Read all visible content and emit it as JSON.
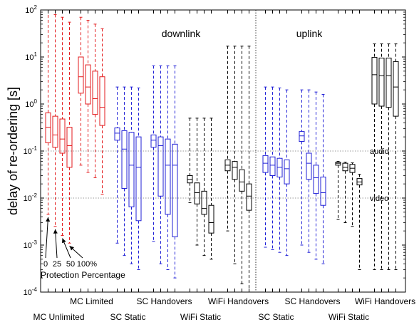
{
  "chart_data": {
    "type": "box",
    "ylabel": "delay of re-ordering [s]",
    "yscale": "log",
    "ylim": [
      0.0001,
      100
    ],
    "yticks": [
      {
        "value": 0.0001,
        "base": "10",
        "exp": "-4"
      },
      {
        "value": 0.001,
        "base": "10",
        "exp": "-3"
      },
      {
        "value": 0.01,
        "base": "10",
        "exp": "-2"
      },
      {
        "value": 0.1,
        "base": "10",
        "exp": "-1"
      },
      {
        "value": 1,
        "base": "10",
        "exp": "0"
      },
      {
        "value": 10,
        "base": "10",
        "exp": "1"
      },
      {
        "value": 100,
        "base": "10",
        "exp": "2"
      }
    ],
    "sections": [
      {
        "id": "downlink",
        "label": "downlink"
      },
      {
        "id": "uplink",
        "label": "uplink"
      }
    ],
    "reference_lines": [
      {
        "value": 0.1,
        "label": "audio"
      },
      {
        "value": 0.01,
        "label": "video"
      }
    ],
    "group_labels": [
      {
        "label": "MC Unlimited",
        "row": 2
      },
      {
        "label": "MC Limited",
        "row": 1
      },
      {
        "label": "SC Static",
        "row": 2
      },
      {
        "label": "SC Handovers",
        "row": 1
      },
      {
        "label": "WiFi Static",
        "row": 2
      },
      {
        "label": "WiFi Handovers",
        "row": 1
      },
      {
        "label": "SC Static",
        "row": 2
      },
      {
        "label": "SC Handovers",
        "row": 1
      },
      {
        "label": "WiFi Static",
        "row": 2
      },
      {
        "label": "WiFi Handovers",
        "row": 1
      }
    ],
    "protection_annotation": {
      "labels": [
        "0",
        "25",
        "50",
        "100%"
      ],
      "caption": "Protection Percentage"
    },
    "colors": {
      "mc": "#e31a1c",
      "sc": "#1f1fd6",
      "wifi": "#000000",
      "ref": "#777777"
    },
    "boxes": [
      {
        "group": 0,
        "i": 0,
        "color": "mc",
        "min": 0.0045,
        "q1": 0.15,
        "med": 0.32,
        "q3": 0.65,
        "max": 100
      },
      {
        "group": 0,
        "i": 1,
        "color": "mc",
        "min": 0.0025,
        "q1": 0.12,
        "med": 0.22,
        "q3": 0.55,
        "max": 80
      },
      {
        "group": 0,
        "i": 2,
        "color": "mc",
        "min": 0.0016,
        "q1": 0.09,
        "med": 0.18,
        "q3": 0.48,
        "max": 70
      },
      {
        "group": 0,
        "i": 3,
        "color": "mc",
        "min": 0.0011,
        "q1": 0.045,
        "med": 0.13,
        "q3": 0.32,
        "max": 55
      },
      {
        "group": 1,
        "i": 0,
        "color": "mc",
        "min": 0.05,
        "q1": 1.7,
        "med": 3.8,
        "q3": 10,
        "max": 70
      },
      {
        "group": 1,
        "i": 1,
        "color": "mc",
        "min": 0.035,
        "q1": 1.0,
        "med": 2.3,
        "q3": 6.8,
        "max": 60
      },
      {
        "group": 1,
        "i": 2,
        "color": "mc",
        "min": 0.027,
        "q1": 0.6,
        "med": 1.3,
        "q3": 5.0,
        "max": 50
      },
      {
        "group": 1,
        "i": 3,
        "color": "mc",
        "min": 0.012,
        "q1": 0.35,
        "med": 0.85,
        "q3": 3.8,
        "max": 40
      },
      {
        "group": 2,
        "i": 0,
        "color": "sc",
        "min": 0.0011,
        "q1": 0.17,
        "med": 0.24,
        "q3": 0.31,
        "max": 2.3
      },
      {
        "group": 2,
        "i": 1,
        "color": "sc",
        "min": 0.0006,
        "q1": 0.016,
        "med": 0.11,
        "q3": 0.27,
        "max": 2.3
      },
      {
        "group": 2,
        "i": 2,
        "color": "sc",
        "min": 0.0004,
        "q1": 0.0065,
        "med": 0.05,
        "q3": 0.25,
        "max": 2.3
      },
      {
        "group": 2,
        "i": 3,
        "color": "sc",
        "min": 0.0003,
        "q1": 0.0033,
        "med": 0.045,
        "q3": 0.2,
        "max": 2.2
      },
      {
        "group": 3,
        "i": 0,
        "color": "sc",
        "min": 0.0012,
        "q1": 0.12,
        "med": 0.17,
        "q3": 0.22,
        "max": 6.5
      },
      {
        "group": 3,
        "i": 1,
        "color": "sc",
        "min": 0.0004,
        "q1": 0.011,
        "med": 0.13,
        "q3": 0.2,
        "max": 6.5
      },
      {
        "group": 3,
        "i": 2,
        "color": "sc",
        "min": 0.0003,
        "q1": 0.0045,
        "med": 0.05,
        "q3": 0.18,
        "max": 6.5
      },
      {
        "group": 3,
        "i": 3,
        "color": "sc",
        "min": 0.0002,
        "q1": 0.0015,
        "med": 0.05,
        "q3": 0.14,
        "max": 6.5
      },
      {
        "group": 4,
        "i": 0,
        "color": "wifi",
        "min": 0.008,
        "q1": 0.021,
        "med": 0.025,
        "q3": 0.03,
        "max": 0.5
      },
      {
        "group": 4,
        "i": 1,
        "color": "wifi",
        "min": 0.001,
        "q1": 0.0075,
        "med": 0.013,
        "q3": 0.021,
        "max": 0.5
      },
      {
        "group": 4,
        "i": 2,
        "color": "wifi",
        "min": 0.0006,
        "q1": 0.0045,
        "med": 0.006,
        "q3": 0.014,
        "max": 0.5
      },
      {
        "group": 4,
        "i": 3,
        "color": "wifi",
        "min": 0.0005,
        "q1": 0.0018,
        "med": 0.003,
        "q3": 0.007,
        "max": 0.5
      },
      {
        "group": 5,
        "i": 0,
        "color": "wifi",
        "min": 0.002,
        "q1": 0.038,
        "med": 0.05,
        "q3": 0.065,
        "max": 17
      },
      {
        "group": 5,
        "i": 1,
        "color": "wifi",
        "min": 0.0004,
        "q1": 0.025,
        "med": 0.045,
        "q3": 0.06,
        "max": 17
      },
      {
        "group": 5,
        "i": 2,
        "color": "wifi",
        "min": 0.00015,
        "q1": 0.014,
        "med": 0.022,
        "q3": 0.04,
        "max": 17
      },
      {
        "group": 5,
        "i": 3,
        "color": "wifi",
        "min": 0.0001,
        "q1": 0.0055,
        "med": 0.011,
        "q3": 0.02,
        "max": 17
      },
      {
        "group": 6,
        "i": 0,
        "color": "sc",
        "min": 0.0009,
        "q1": 0.035,
        "med": 0.055,
        "q3": 0.08,
        "max": 2.3
      },
      {
        "group": 6,
        "i": 1,
        "color": "sc",
        "min": 0.0008,
        "q1": 0.03,
        "med": 0.05,
        "q3": 0.075,
        "max": 2.3
      },
      {
        "group": 6,
        "i": 2,
        "color": "sc",
        "min": 0.0007,
        "q1": 0.028,
        "med": 0.045,
        "q3": 0.07,
        "max": 2.2
      },
      {
        "group": 6,
        "i": 3,
        "color": "sc",
        "min": 0.0006,
        "q1": 0.02,
        "med": 0.042,
        "q3": 0.065,
        "max": 2.0
      },
      {
        "group": 7,
        "i": 0,
        "color": "sc",
        "min": 0.001,
        "q1": 0.16,
        "med": 0.21,
        "q3": 0.26,
        "max": 2.0
      },
      {
        "group": 7,
        "i": 1,
        "color": "sc",
        "min": 0.0007,
        "q1": 0.025,
        "med": 0.055,
        "q3": 0.09,
        "max": 2.0
      },
      {
        "group": 7,
        "i": 2,
        "color": "sc",
        "min": 0.0005,
        "q1": 0.0125,
        "med": 0.027,
        "q3": 0.05,
        "max": 1.8
      },
      {
        "group": 7,
        "i": 3,
        "color": "sc",
        "min": 0.0004,
        "q1": 0.007,
        "med": 0.013,
        "q3": 0.028,
        "max": 1.6
      },
      {
        "group": 8,
        "i": 0,
        "color": "wifi",
        "min": 0.0035,
        "q1": 0.05,
        "med": 0.055,
        "q3": 0.058,
        "max": 0.06
      },
      {
        "group": 8,
        "i": 1,
        "color": "wifi",
        "min": 0.003,
        "q1": 0.038,
        "med": 0.045,
        "q3": 0.055,
        "max": 0.058
      },
      {
        "group": 8,
        "i": 2,
        "color": "wifi",
        "min": 0.0025,
        "q1": 0.035,
        "med": 0.043,
        "q3": 0.052,
        "max": 0.056
      },
      {
        "group": 8,
        "i": 3,
        "color": "wifi",
        "min": 0.0003,
        "q1": 0.019,
        "med": 0.022,
        "q3": 0.026,
        "max": 0.032
      },
      {
        "group": 9,
        "i": 0,
        "color": "wifi",
        "min": 0.0003,
        "q1": 1.0,
        "med": 4.2,
        "q3": 9.8,
        "max": 19
      },
      {
        "group": 9,
        "i": 1,
        "color": "wifi",
        "min": 0.0003,
        "q1": 0.9,
        "med": 4.0,
        "q3": 9.5,
        "max": 19
      },
      {
        "group": 9,
        "i": 2,
        "color": "wifi",
        "min": 0.0003,
        "q1": 0.85,
        "med": 4.0,
        "q3": 9.5,
        "max": 19
      },
      {
        "group": 9,
        "i": 3,
        "color": "wifi",
        "min": 0.0003,
        "q1": 0.55,
        "med": 2.3,
        "q3": 8.0,
        "max": 19
      }
    ]
  }
}
